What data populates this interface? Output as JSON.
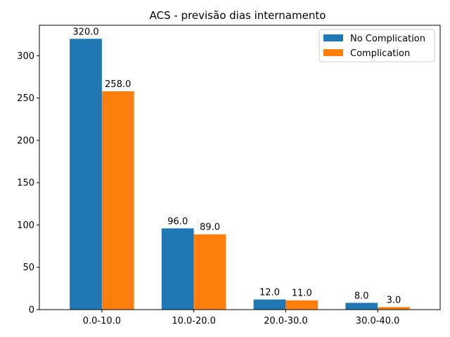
{
  "chart_data": {
    "type": "bar",
    "title": "ACS - previsão dias internamento",
    "xlabel": "",
    "ylabel": "",
    "categories": [
      "0.0-10.0",
      "10.0-20.0",
      "20.0-30.0",
      "30.0-40.0"
    ],
    "series": [
      {
        "name": "No Complication",
        "color": "#1f77b4",
        "values": [
          320,
          96,
          12,
          8
        ],
        "labels": [
          "320.0",
          "96.0",
          "12.0",
          "8.0"
        ]
      },
      {
        "name": "Complication",
        "color": "#ff7f0e",
        "values": [
          258,
          89,
          11,
          3
        ],
        "labels": [
          "258.0",
          "89.0",
          "11.0",
          "3.0"
        ]
      }
    ],
    "ylim": [
      0,
      336
    ],
    "yticks": [
      0,
      50,
      100,
      150,
      200,
      250,
      300
    ],
    "legend": "top-right",
    "grid": false
  }
}
